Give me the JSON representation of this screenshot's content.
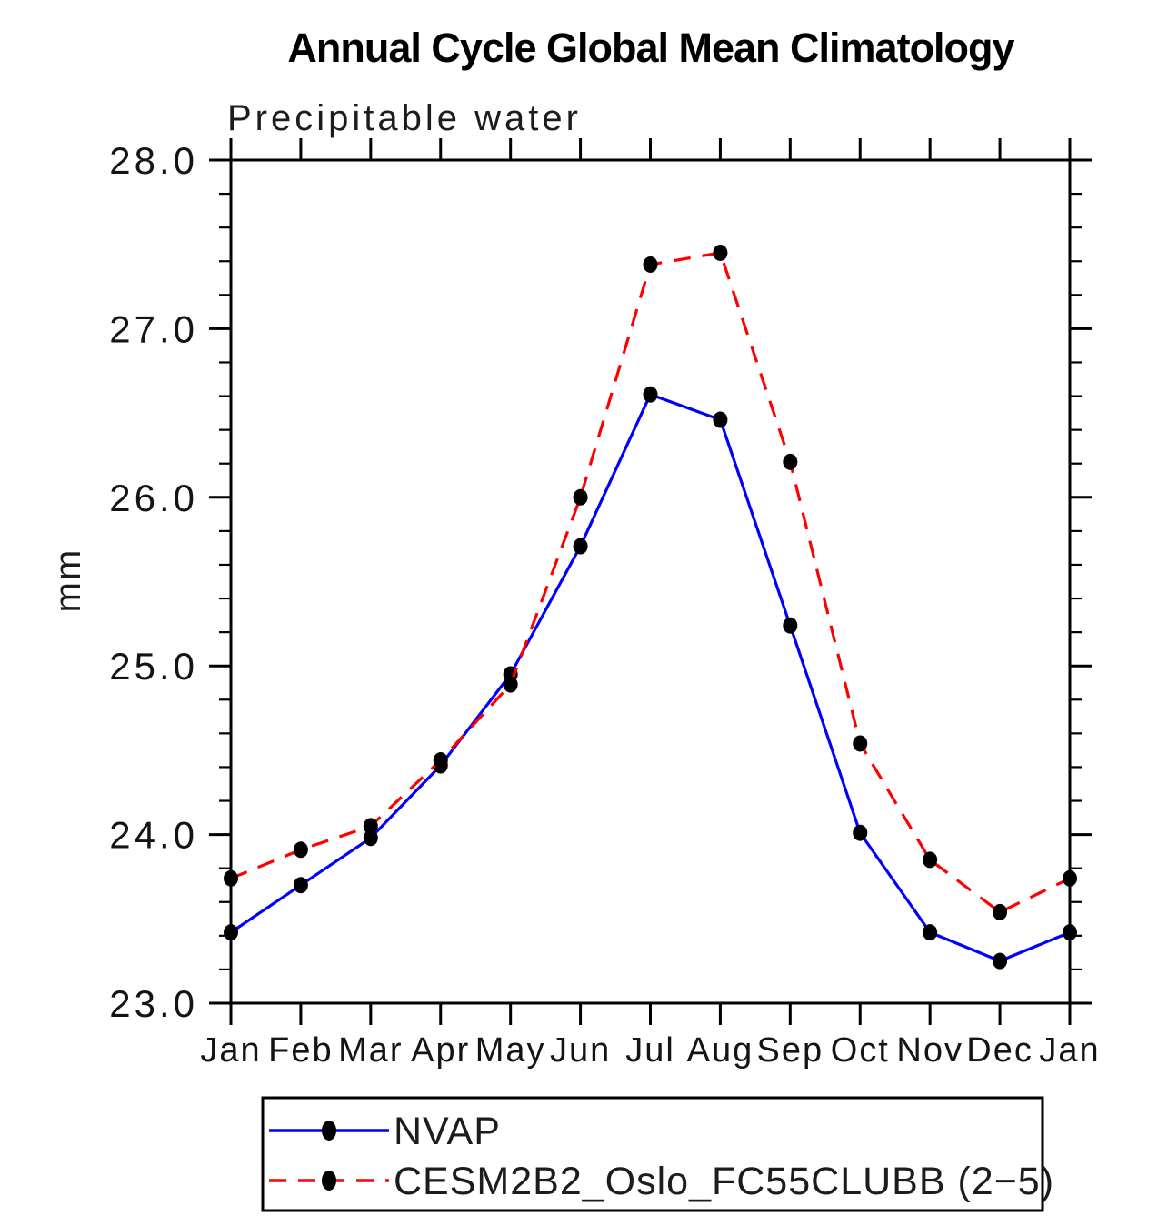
{
  "page": {
    "background": "#ffffff"
  },
  "chart_data": {
    "type": "line",
    "title": "Annual Cycle Global Mean Climatology",
    "subtitle": "Precipitable water",
    "xlabel": "",
    "ylabel": "mm",
    "x_tick_labels": [
      "Jan",
      "Feb",
      "Mar",
      "Apr",
      "May",
      "Jun",
      "Jul",
      "Aug",
      "Sep",
      "Oct",
      "Nov",
      "Dec",
      "Jan"
    ],
    "ylim": [
      23.0,
      28.0
    ],
    "y_major_tick_step": 1.0,
    "y_minor_tick_step": 0.2,
    "y_tick_labels": [
      "23.0",
      "24.0",
      "25.0",
      "26.0",
      "27.0",
      "28.0"
    ],
    "grid": false,
    "legend_position": "bottom",
    "axis_color": "#000000",
    "marker": {
      "shape": "filled-circle",
      "color": "#000000"
    },
    "series": [
      {
        "name": "NVAP",
        "color": "#0000ff",
        "line_style": "solid",
        "values": [
          23.42,
          23.7,
          23.98,
          24.41,
          24.95,
          25.71,
          26.61,
          26.46,
          25.24,
          24.01,
          23.42,
          23.25,
          23.42
        ]
      },
      {
        "name": "CESM2B2_Oslo_FC55CLUBB (2−5)",
        "color": "#ff0000",
        "line_style": "dashed",
        "values": [
          23.74,
          23.91,
          24.05,
          24.44,
          24.89,
          26.0,
          27.38,
          27.45,
          26.21,
          24.54,
          23.85,
          23.54,
          23.74
        ]
      }
    ]
  }
}
